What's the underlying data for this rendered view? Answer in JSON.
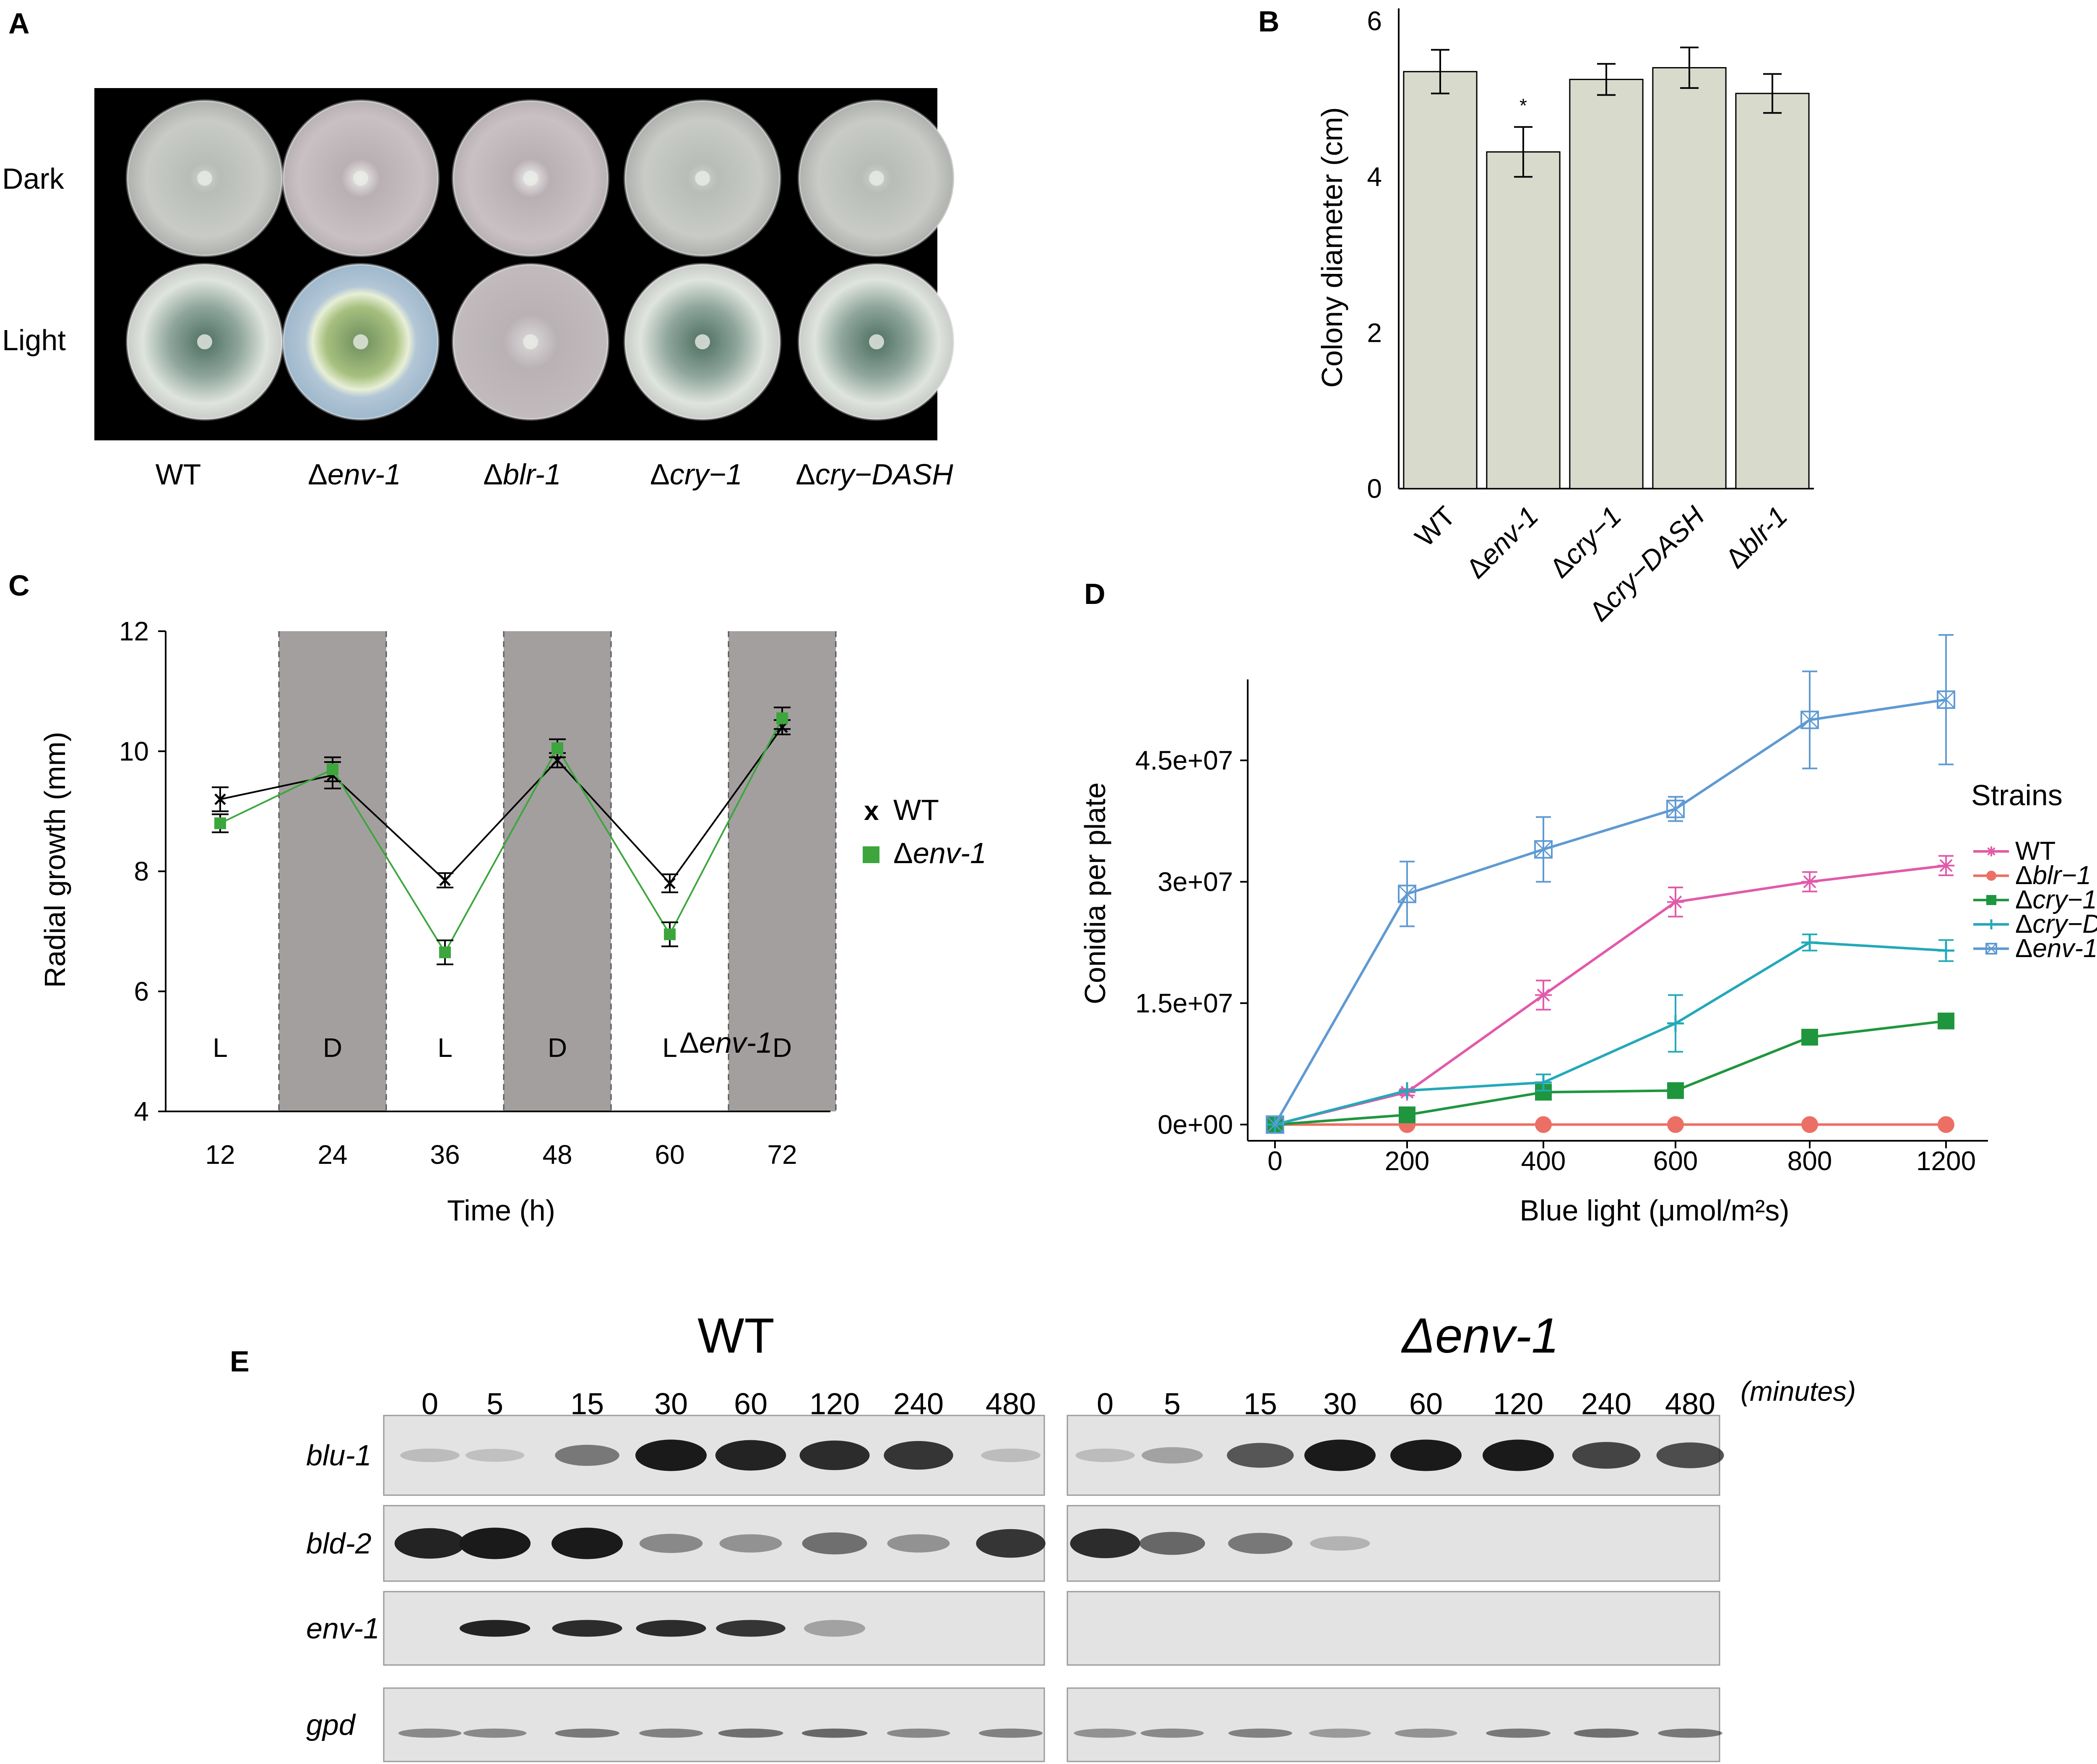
{
  "panels": {
    "A": {
      "letter": "A",
      "row_labels": [
        "Dark",
        "Light"
      ],
      "strains": [
        {
          "pre": "WT",
          "it": ""
        },
        {
          "pre": "Δ",
          "it": "env-1"
        },
        {
          "pre": "Δ",
          "it": "blr-1"
        },
        {
          "pre": "Δ",
          "it": "cry−1"
        },
        {
          "pre": "Δ",
          "it": "cry−DASH"
        }
      ]
    },
    "B": {
      "letter": "B",
      "sig_mark": "*",
      "chart_data": {
        "type": "bar",
        "categories": [
          "WT",
          "Δenv-1",
          "Δcry−1",
          "Δcry−DASH",
          "Δblr-1"
        ],
        "category_parts": [
          {
            "pre": "WT",
            "it": ""
          },
          {
            "pre": "Δ",
            "it": "env-1"
          },
          {
            "pre": "Δ",
            "it": "cry−1"
          },
          {
            "pre": "Δ",
            "it": "cry−DASH"
          },
          {
            "pre": "Δ",
            "it": "blr-1"
          }
        ],
        "values": [
          5.35,
          4.32,
          5.25,
          5.4,
          5.07
        ],
        "errors": [
          0.28,
          0.32,
          0.2,
          0.26,
          0.25
        ],
        "ylabel": "Colony diameter (cm)",
        "ylim": [
          0,
          6
        ],
        "yticks": [
          0,
          2,
          4,
          6
        ],
        "bar_color": "#d8dacc"
      }
    },
    "C": {
      "letter": "C",
      "annotation": {
        "pre": "Δ",
        "it": "env-1"
      },
      "chart_data": {
        "type": "line",
        "x": [
          12,
          24,
          36,
          48,
          60,
          72
        ],
        "xticks": [
          12,
          24,
          36,
          48,
          60,
          72
        ],
        "phases": [
          "L",
          "D",
          "L",
          "D",
          "L",
          "D"
        ],
        "dark_shade_color": "#a39f9f",
        "xlabel": "Time (h)",
        "ylabel": "Radial growth (mm)",
        "ylim": [
          4,
          12
        ],
        "yticks": [
          4,
          6,
          8,
          10,
          12
        ],
        "series": [
          {
            "name": "WT",
            "legend_marker": "x",
            "color": "#000000",
            "values": [
              9.2,
              9.6,
              7.85,
              9.85,
              7.8,
              10.4
            ],
            "errors": [
              0.2,
              0.22,
              0.12,
              0.12,
              0.15,
              0.12
            ]
          },
          {
            "name": "Δenv-1",
            "legend_pre": "Δ",
            "legend_it": "env-1",
            "color": "#3ca63c",
            "values": [
              8.8,
              9.7,
              6.65,
              10.05,
              6.95,
              10.55
            ],
            "errors": [
              0.15,
              0.2,
              0.2,
              0.15,
              0.2,
              0.18
            ]
          }
        ]
      }
    },
    "D": {
      "letter": "D",
      "chart_data": {
        "type": "line",
        "x": [
          0,
          200,
          400,
          600,
          800,
          1200
        ],
        "xticks": [
          "0",
          "200",
          "400",
          "600",
          "800",
          "1200"
        ],
        "xlabel": "Blue light (μmol/m²s)",
        "ylabel": "Conidia per plate",
        "yticks": [
          0,
          15000000,
          30000000,
          45000000
        ],
        "ytick_labels": [
          "0e+00",
          "1.5e+07",
          "3e+07",
          "4.5e+07"
        ],
        "ylim": [
          -2000000,
          55000000
        ],
        "legend_title": "Strains",
        "series": [
          {
            "name": "WT",
            "pre": "WT",
            "it": "",
            "color": "#e15aaa",
            "marker": "asterisk",
            "values": [
              0,
              4000000,
              16000000,
              27500000,
              30000000,
              32000000
            ],
            "errors": [
              0,
              400000,
              1800000,
              1800000,
              1200000,
              1200000
            ]
          },
          {
            "name": "Δblr−1",
            "pre": "Δ",
            "it": "blr−1",
            "color": "#ec6f65",
            "marker": "circle",
            "values": [
              0,
              0,
              0,
              0,
              0,
              0
            ],
            "errors": [
              0,
              0,
              0,
              0,
              0,
              0
            ]
          },
          {
            "name": "Δcry−1",
            "pre": "Δ",
            "it": "cry−1",
            "color": "#1f963e",
            "marker": "square",
            "values": [
              0,
              1200000,
              4000000,
              4200000,
              10800000,
              12800000
            ],
            "errors": [
              0,
              0,
              0,
              0,
              0,
              0
            ]
          },
          {
            "name": "Δcry−DASH",
            "pre": "Δ",
            "it": "cry−DASH",
            "color": "#23a9b9",
            "marker": "plus",
            "values": [
              0,
              4200000,
              5200000,
              12500000,
              22500000,
              21500000
            ],
            "errors": [
              0,
              0,
              1000000,
              3500000,
              1000000,
              1300000
            ]
          },
          {
            "name": "Δenv-1",
            "pre": "Δ",
            "it": "env-1",
            "color": "#5f9ad2",
            "marker": "boxx",
            "values": [
              0,
              28500000,
              34000000,
              39000000,
              50000000,
              52500000
            ],
            "errors": [
              0,
              4000000,
              4000000,
              1500000,
              6000000,
              8000000
            ]
          }
        ]
      }
    },
    "E": {
      "letter": "E",
      "groups": [
        {
          "title": "WT",
          "italic": false
        },
        {
          "title": "Δenv-1",
          "italic": true
        }
      ],
      "time_points": [
        "0",
        "5",
        "15",
        "30",
        "60",
        "120",
        "240",
        "480"
      ],
      "time_unit": "(minutes)",
      "genes": [
        "blu-1",
        "bld-2",
        "env-1",
        "gpd"
      ],
      "band_intensity": {
        "WT": [
          [
            0.05,
            0.02,
            0.45,
            1.0,
            0.95,
            0.9,
            0.85,
            0.05
          ],
          [
            0.95,
            1.0,
            1.0,
            0.35,
            0.3,
            0.5,
            0.3,
            0.85
          ],
          [
            0.0,
            0.95,
            0.9,
            0.9,
            0.85,
            0.2,
            0.0,
            0.0
          ],
          [
            0.35,
            0.35,
            0.45,
            0.4,
            0.5,
            0.55,
            0.35,
            0.4
          ]
        ],
        "Δenv-1": [
          [
            0.05,
            0.2,
            0.65,
            1.0,
            1.0,
            1.0,
            0.75,
            0.7
          ],
          [
            0.9,
            0.55,
            0.45,
            0.1,
            0.0,
            0.0,
            0.0,
            0.0
          ],
          [
            0.0,
            0.0,
            0.0,
            0.0,
            0.0,
            0.0,
            0.0,
            0.0
          ],
          [
            0.3,
            0.35,
            0.4,
            0.25,
            0.3,
            0.45,
            0.5,
            0.45
          ]
        ]
      }
    }
  }
}
